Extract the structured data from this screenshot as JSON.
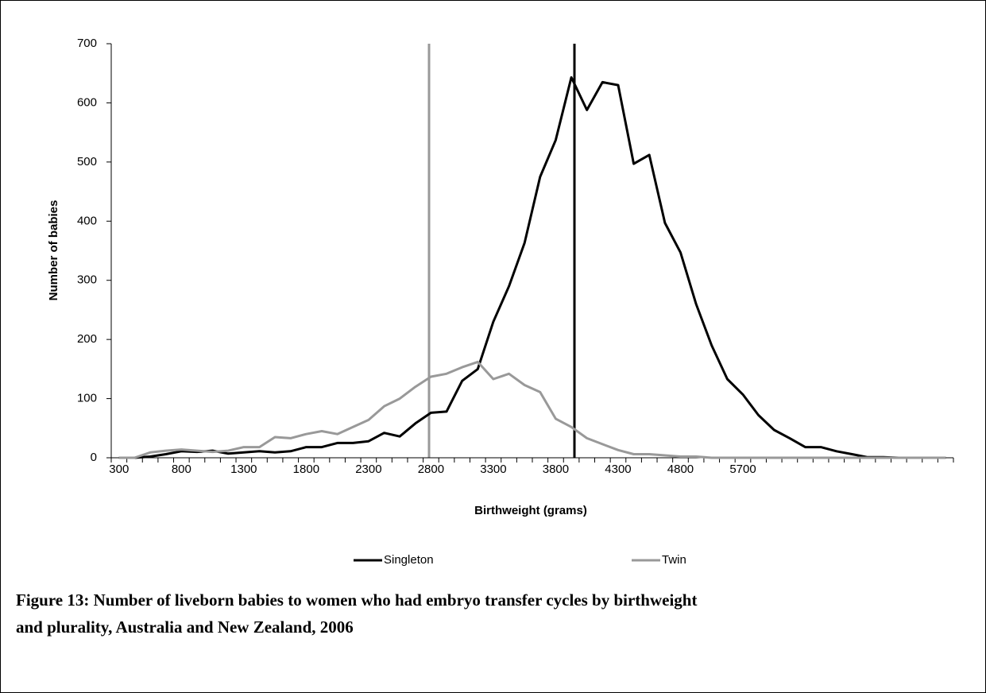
{
  "chart_data": {
    "type": "line",
    "title": "Figure 13: Number of liveborn babies to women who had embryo transfer cycles by birthweight and plurality, Australia and New Zealand, 2006",
    "x_label": "Birthweight (grams)",
    "y_label": "Number of babies",
    "categories": [
      "300",
      null,
      null,
      null,
      "800",
      null,
      null,
      null,
      "1300",
      null,
      null,
      null,
      "1800",
      null,
      null,
      null,
      "2300",
      null,
      null,
      null,
      "2800",
      null,
      null,
      null,
      "3300",
      null,
      null,
      null,
      "3800",
      null,
      null,
      null,
      "4300",
      null,
      null,
      null,
      "4800",
      null,
      null,
      null,
      "5700",
      null,
      null,
      null,
      null,
      null,
      null,
      null,
      null,
      null,
      null,
      null,
      null,
      null
    ],
    "series": [
      {
        "name": "Singleton",
        "color": "#000000",
        "values": [
          0,
          0,
          2,
          6,
          11,
          10,
          12,
          7,
          9,
          11,
          9,
          11,
          18,
          18,
          25,
          25,
          28,
          42,
          36,
          58,
          76,
          78,
          130,
          150,
          230,
          290,
          363,
          475,
          537,
          643,
          588,
          635,
          630,
          497,
          512,
          397,
          347,
          260,
          190,
          133,
          107,
          72,
          47,
          33,
          18,
          18,
          11,
          6,
          1,
          1,
          0,
          0,
          0,
          0
        ]
      },
      {
        "name": "Twin",
        "color": "#999999",
        "values": [
          0,
          0,
          9,
          12,
          14,
          12,
          10,
          12,
          18,
          18,
          35,
          33,
          40,
          45,
          40,
          52,
          64,
          87,
          100,
          120,
          137,
          142,
          153,
          162,
          133,
          142,
          123,
          111,
          66,
          52,
          33,
          23,
          13,
          6,
          6,
          4,
          2,
          2,
          0,
          0,
          0,
          0,
          0,
          0,
          0,
          0,
          0,
          0,
          0,
          0,
          0,
          0,
          0,
          0
        ]
      }
    ],
    "ylim": [
      0,
      700
    ],
    "yticks": [
      0,
      100,
      200,
      300,
      400,
      500,
      600,
      700
    ],
    "legend": "bottom"
  }
}
